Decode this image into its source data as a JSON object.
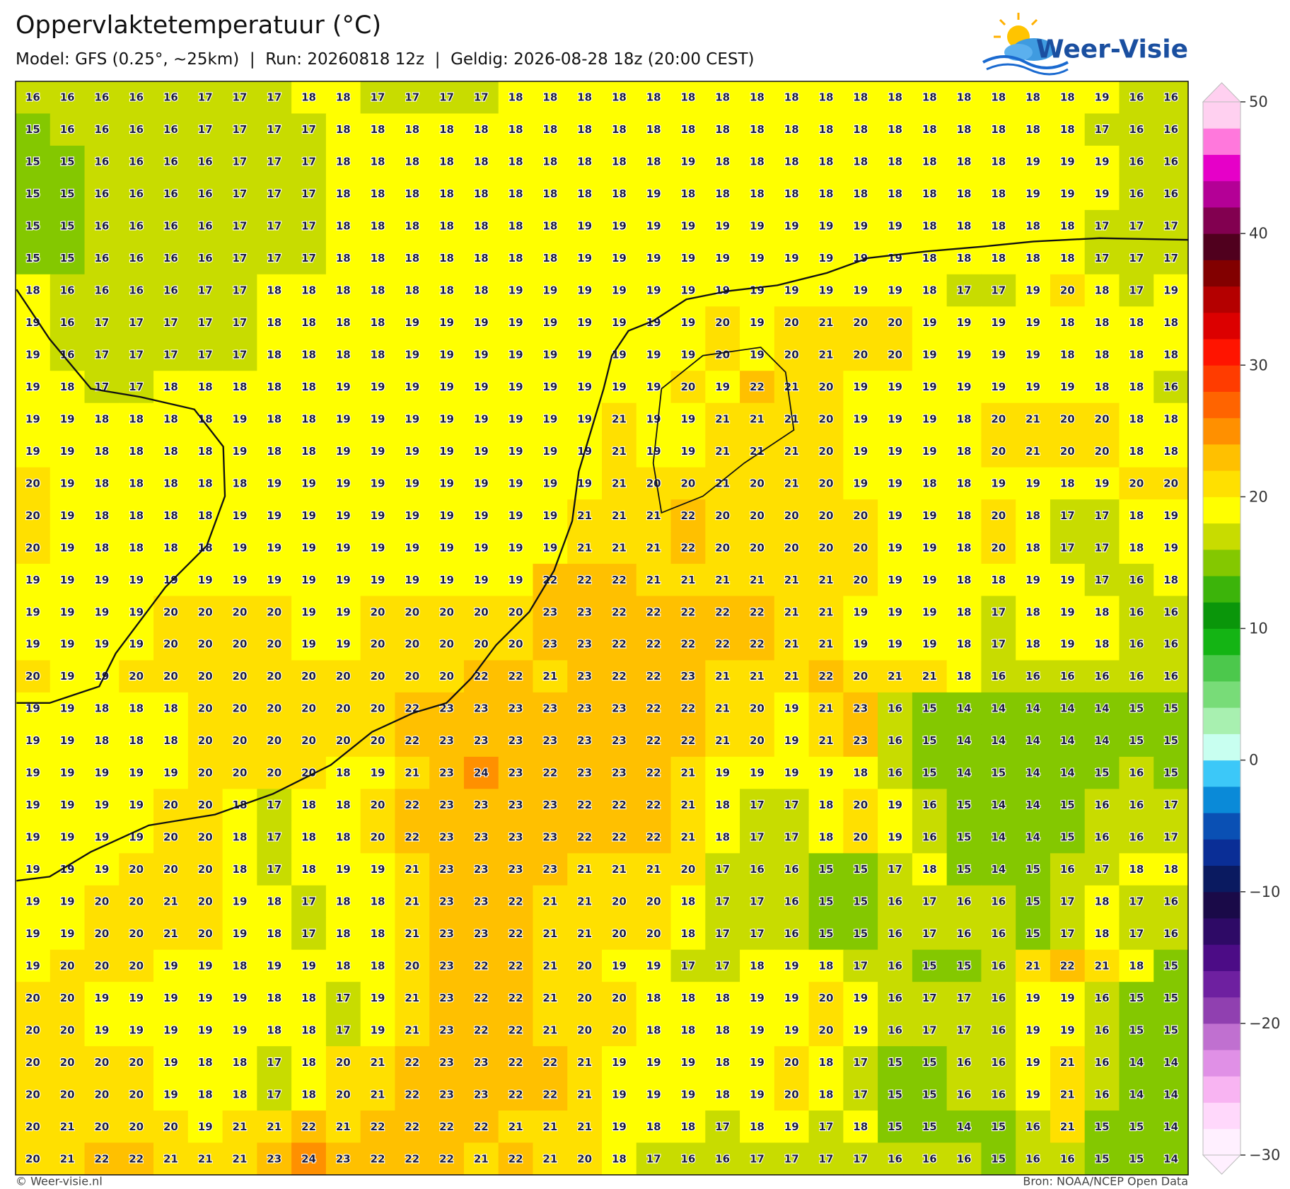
{
  "header": {
    "title": "Oppervlaktetemperatuur (°C)",
    "subtitle": "Model: GFS (0.25°, ~25km)  |  Run: 20260818 12z  |  Geldig: 2026-08-28 18z (20:00 CEST)",
    "logo": "Weer-Visie"
  },
  "footer": {
    "left": "© Weer-visie.nl",
    "right": "Bron: NOAA/NCEP Open Data"
  },
  "chart_data": {
    "type": "heatmap",
    "values": [
      [
        16,
        16,
        16,
        16,
        16,
        17,
        17,
        17,
        18,
        18,
        17,
        17,
        17,
        17,
        18,
        18,
        18,
        18,
        18,
        18,
        18,
        18,
        18,
        18,
        18,
        18,
        18,
        18,
        18,
        18,
        18,
        19,
        16,
        16
      ],
      [
        15,
        16,
        16,
        16,
        16,
        17,
        17,
        17,
        17,
        18,
        18,
        18,
        18,
        18,
        18,
        18,
        18,
        18,
        18,
        18,
        18,
        18,
        18,
        18,
        18,
        18,
        18,
        18,
        18,
        18,
        18,
        17,
        16,
        16
      ],
      [
        15,
        15,
        16,
        16,
        16,
        16,
        17,
        17,
        17,
        18,
        18,
        18,
        18,
        18,
        18,
        18,
        18,
        18,
        18,
        19,
        18,
        18,
        18,
        18,
        18,
        18,
        18,
        18,
        18,
        19,
        19,
        19,
        16,
        16
      ],
      [
        15,
        15,
        16,
        16,
        16,
        16,
        17,
        17,
        17,
        18,
        18,
        18,
        18,
        18,
        18,
        18,
        18,
        18,
        19,
        18,
        18,
        18,
        18,
        18,
        18,
        18,
        18,
        18,
        18,
        19,
        19,
        19,
        16,
        16
      ],
      [
        15,
        15,
        16,
        16,
        16,
        16,
        17,
        17,
        17,
        18,
        18,
        18,
        18,
        18,
        18,
        18,
        19,
        19,
        19,
        19,
        19,
        19,
        19,
        19,
        19,
        19,
        18,
        18,
        18,
        18,
        18,
        17,
        17,
        17
      ],
      [
        15,
        15,
        16,
        16,
        16,
        16,
        17,
        17,
        17,
        18,
        18,
        18,
        18,
        18,
        18,
        18,
        19,
        19,
        19,
        19,
        19,
        19,
        19,
        19,
        19,
        19,
        18,
        18,
        18,
        18,
        18,
        17,
        17,
        17
      ],
      [
        18,
        16,
        16,
        16,
        16,
        17,
        17,
        18,
        18,
        18,
        18,
        18,
        18,
        18,
        19,
        19,
        19,
        19,
        19,
        19,
        19,
        19,
        19,
        19,
        19,
        19,
        18,
        17,
        17,
        19,
        20,
        18,
        17,
        19
      ],
      [
        19,
        16,
        17,
        17,
        17,
        17,
        17,
        18,
        18,
        18,
        18,
        19,
        19,
        19,
        19,
        19,
        19,
        19,
        19,
        19,
        20,
        19,
        20,
        21,
        20,
        20,
        19,
        19,
        19,
        19,
        18,
        18,
        18,
        18
      ],
      [
        19,
        16,
        17,
        17,
        17,
        17,
        17,
        18,
        18,
        18,
        18,
        19,
        19,
        19,
        19,
        19,
        19,
        19,
        19,
        19,
        20,
        19,
        20,
        21,
        20,
        20,
        19,
        19,
        19,
        19,
        18,
        18,
        18,
        18
      ],
      [
        19,
        18,
        17,
        17,
        18,
        18,
        18,
        18,
        18,
        19,
        19,
        19,
        19,
        19,
        19,
        19,
        19,
        19,
        19,
        20,
        19,
        22,
        21,
        20,
        19,
        19,
        19,
        19,
        19,
        19,
        19,
        18,
        18,
        16
      ],
      [
        19,
        19,
        18,
        18,
        18,
        18,
        19,
        18,
        18,
        19,
        19,
        19,
        19,
        19,
        19,
        19,
        19,
        21,
        19,
        19,
        21,
        21,
        21,
        20,
        19,
        19,
        19,
        18,
        20,
        21,
        20,
        20,
        18,
        18
      ],
      [
        19,
        19,
        18,
        18,
        18,
        18,
        19,
        18,
        18,
        19,
        19,
        19,
        19,
        19,
        19,
        19,
        19,
        21,
        19,
        19,
        21,
        21,
        21,
        20,
        19,
        19,
        19,
        18,
        20,
        21,
        20,
        20,
        18,
        18
      ],
      [
        20,
        19,
        18,
        18,
        18,
        18,
        18,
        19,
        19,
        19,
        19,
        19,
        19,
        19,
        19,
        19,
        19,
        21,
        20,
        20,
        21,
        20,
        21,
        20,
        19,
        19,
        18,
        18,
        19,
        19,
        18,
        19,
        20,
        20
      ],
      [
        20,
        19,
        18,
        18,
        18,
        18,
        19,
        19,
        19,
        19,
        19,
        19,
        19,
        19,
        19,
        19,
        21,
        21,
        21,
        22,
        20,
        20,
        20,
        20,
        20,
        19,
        19,
        18,
        20,
        18,
        17,
        17,
        18,
        19
      ],
      [
        20,
        19,
        18,
        18,
        18,
        18,
        19,
        19,
        19,
        19,
        19,
        19,
        19,
        19,
        19,
        19,
        21,
        21,
        21,
        22,
        20,
        20,
        20,
        20,
        20,
        19,
        19,
        18,
        20,
        18,
        17,
        17,
        18,
        19
      ],
      [
        19,
        19,
        19,
        19,
        19,
        19,
        19,
        19,
        19,
        19,
        19,
        19,
        19,
        19,
        19,
        22,
        22,
        22,
        21,
        21,
        21,
        21,
        21,
        21,
        20,
        19,
        19,
        18,
        18,
        19,
        19,
        17,
        16,
        18
      ],
      [
        19,
        19,
        19,
        19,
        20,
        20,
        20,
        20,
        19,
        19,
        20,
        20,
        20,
        20,
        20,
        23,
        23,
        22,
        22,
        22,
        22,
        22,
        21,
        21,
        19,
        19,
        19,
        18,
        17,
        18,
        19,
        18,
        16,
        16
      ],
      [
        19,
        19,
        19,
        19,
        20,
        20,
        20,
        20,
        19,
        19,
        20,
        20,
        20,
        20,
        20,
        23,
        23,
        22,
        22,
        22,
        22,
        22,
        21,
        21,
        19,
        19,
        19,
        18,
        17,
        18,
        19,
        18,
        16,
        16
      ],
      [
        20,
        19,
        19,
        20,
        20,
        20,
        20,
        20,
        20,
        20,
        20,
        20,
        20,
        22,
        22,
        21,
        23,
        22,
        22,
        23,
        21,
        21,
        21,
        22,
        20,
        21,
        21,
        18,
        16,
        16,
        16,
        16,
        16,
        16
      ],
      [
        19,
        19,
        18,
        18,
        18,
        20,
        20,
        20,
        20,
        20,
        20,
        22,
        23,
        23,
        23,
        23,
        23,
        23,
        22,
        22,
        21,
        20,
        19,
        21,
        23,
        16,
        15,
        14,
        14,
        14,
        14,
        14,
        15,
        15
      ],
      [
        19,
        19,
        18,
        18,
        18,
        20,
        20,
        20,
        20,
        20,
        20,
        22,
        23,
        23,
        23,
        23,
        23,
        23,
        22,
        22,
        21,
        20,
        19,
        21,
        23,
        16,
        15,
        14,
        14,
        14,
        14,
        14,
        15,
        15
      ],
      [
        19,
        19,
        19,
        19,
        19,
        20,
        20,
        20,
        20,
        18,
        19,
        21,
        23,
        24,
        23,
        22,
        23,
        23,
        22,
        21,
        19,
        19,
        19,
        19,
        18,
        16,
        15,
        14,
        15,
        14,
        14,
        15,
        16,
        15
      ],
      [
        19,
        19,
        19,
        19,
        20,
        20,
        18,
        17,
        18,
        18,
        20,
        22,
        23,
        23,
        23,
        23,
        22,
        22,
        22,
        21,
        18,
        17,
        17,
        18,
        20,
        19,
        16,
        15,
        14,
        14,
        15,
        16,
        16,
        17
      ],
      [
        19,
        19,
        19,
        19,
        20,
        20,
        18,
        17,
        18,
        18,
        20,
        22,
        23,
        23,
        23,
        23,
        22,
        22,
        22,
        21,
        18,
        17,
        17,
        18,
        20,
        19,
        16,
        15,
        14,
        14,
        15,
        16,
        16,
        17
      ],
      [
        19,
        19,
        19,
        20,
        20,
        20,
        18,
        17,
        18,
        19,
        19,
        21,
        23,
        23,
        23,
        23,
        21,
        21,
        21,
        20,
        17,
        16,
        16,
        15,
        15,
        17,
        18,
        15,
        14,
        15,
        16,
        17,
        18,
        18
      ],
      [
        19,
        19,
        20,
        20,
        21,
        20,
        19,
        18,
        17,
        18,
        18,
        21,
        23,
        23,
        22,
        21,
        21,
        20,
        20,
        18,
        17,
        17,
        16,
        15,
        15,
        16,
        17,
        16,
        16,
        15,
        17,
        18,
        17,
        16
      ],
      [
        19,
        19,
        20,
        20,
        21,
        20,
        19,
        18,
        17,
        18,
        18,
        21,
        23,
        23,
        22,
        21,
        21,
        20,
        20,
        18,
        17,
        17,
        16,
        15,
        15,
        16,
        17,
        16,
        16,
        15,
        17,
        18,
        17,
        16
      ],
      [
        19,
        20,
        20,
        20,
        19,
        19,
        18,
        19,
        19,
        18,
        18,
        20,
        23,
        22,
        22,
        21,
        20,
        19,
        19,
        17,
        17,
        18,
        19,
        18,
        17,
        16,
        15,
        15,
        16,
        21,
        22,
        21,
        18,
        15
      ],
      [
        20,
        20,
        19,
        19,
        19,
        19,
        19,
        18,
        18,
        17,
        19,
        21,
        23,
        22,
        22,
        21,
        20,
        20,
        18,
        18,
        18,
        19,
        19,
        20,
        19,
        16,
        17,
        17,
        16,
        19,
        19,
        16,
        15,
        15
      ],
      [
        20,
        20,
        19,
        19,
        19,
        19,
        19,
        18,
        18,
        17,
        19,
        21,
        23,
        22,
        22,
        21,
        20,
        20,
        18,
        18,
        18,
        19,
        19,
        20,
        19,
        16,
        17,
        17,
        16,
        19,
        19,
        16,
        15,
        15
      ],
      [
        20,
        20,
        20,
        20,
        19,
        18,
        18,
        17,
        18,
        20,
        21,
        22,
        23,
        23,
        22,
        22,
        21,
        19,
        19,
        19,
        18,
        19,
        20,
        18,
        17,
        15,
        15,
        16,
        16,
        19,
        21,
        16,
        14,
        14
      ],
      [
        20,
        20,
        20,
        20,
        19,
        18,
        18,
        17,
        18,
        20,
        21,
        22,
        23,
        23,
        22,
        22,
        21,
        19,
        19,
        19,
        18,
        19,
        20,
        18,
        17,
        15,
        15,
        16,
        16,
        19,
        21,
        16,
        14,
        14
      ],
      [
        20,
        21,
        20,
        20,
        20,
        19,
        21,
        21,
        22,
        21,
        22,
        22,
        22,
        22,
        21,
        21,
        21,
        19,
        18,
        18,
        17,
        18,
        19,
        17,
        18,
        15,
        15,
        14,
        15,
        16,
        21,
        15,
        15,
        14
      ],
      [
        20,
        21,
        22,
        22,
        21,
        21,
        21,
        23,
        24,
        23,
        22,
        22,
        22,
        21,
        22,
        21,
        20,
        18,
        17,
        16,
        16,
        17,
        17,
        17,
        17,
        16,
        16,
        16,
        15,
        16,
        16,
        15,
        15,
        14
      ]
    ],
    "colorbar": {
      "zlim": [
        -30,
        50
      ],
      "zticks": [
        {
          "value": -30,
          "label": "−30"
        },
        {
          "value": -20,
          "label": "−20"
        },
        {
          "value": -10,
          "label": "−10"
        },
        0,
        10,
        20,
        30,
        40,
        50
      ],
      "levels": [
        -30,
        -28,
        -26,
        -24,
        -22,
        -20,
        -18,
        -16,
        -14,
        -12,
        -10,
        -8,
        -6,
        -4,
        -2,
        0,
        2,
        4,
        6,
        8,
        10,
        12,
        14,
        16,
        18,
        20,
        22,
        24,
        26,
        28,
        30,
        32,
        34,
        36,
        38,
        40,
        42,
        44,
        46,
        48,
        50
      ],
      "colors": [
        "#fff0ff",
        "#ffd8fb",
        "#f8b4f2",
        "#e090e6",
        "#c070d0",
        "#9040b0",
        "#6e20a0",
        "#4c0c86",
        "#2e0a66",
        "#1a0a48",
        "#0a1a60",
        "#0a2e96",
        "#0a50b4",
        "#0a8ad8",
        "#3cc8f8",
        "#c8fff0",
        "#a8f0b0",
        "#78dc78",
        "#4cc84c",
        "#14b414",
        "#0a960a",
        "#3cb40a",
        "#84c800",
        "#c8dc00",
        "#ffff00",
        "#ffe000",
        "#ffc000",
        "#ff9000",
        "#ff6400",
        "#ff3c00",
        "#ff1400",
        "#dc0000",
        "#b40000",
        "#820000",
        "#50001e",
        "#820050",
        "#b40096",
        "#e600c8",
        "#ff78dc",
        "#ffd0f0"
      ]
    }
  }
}
